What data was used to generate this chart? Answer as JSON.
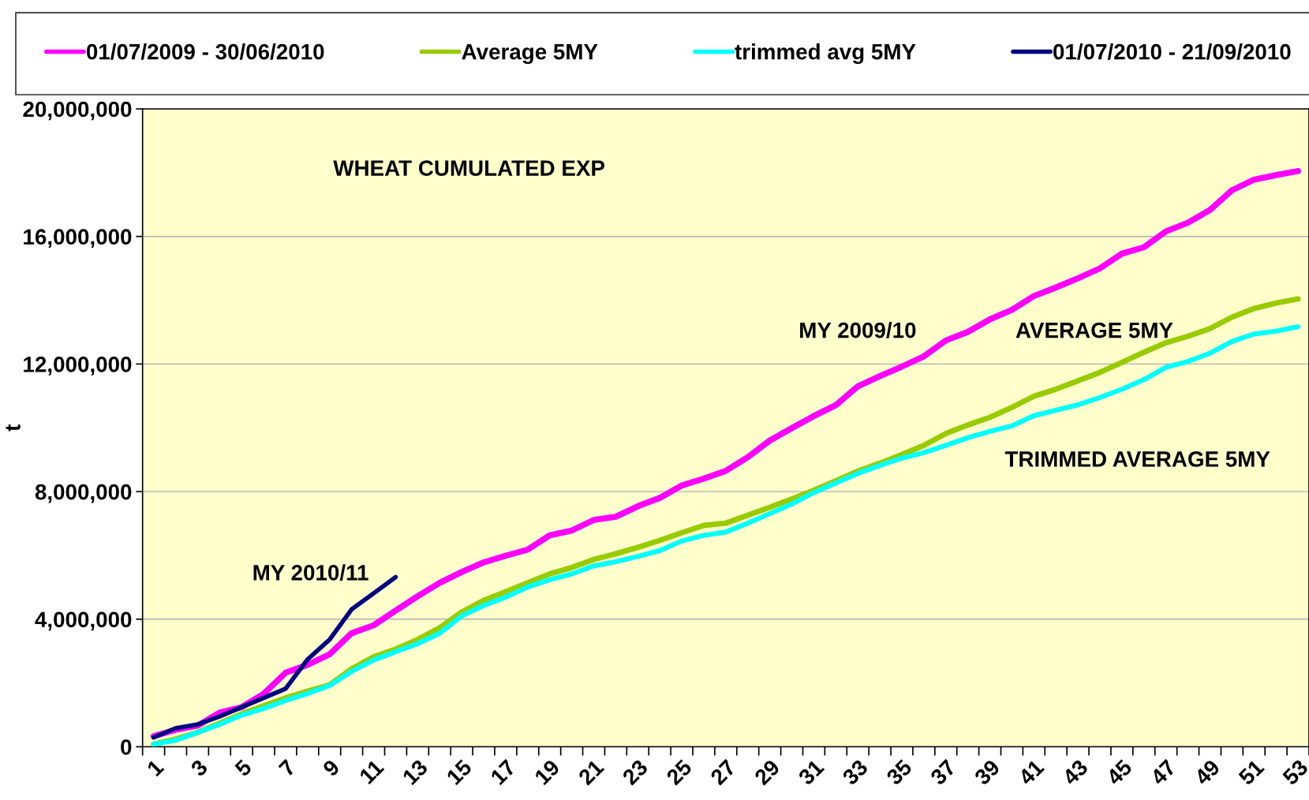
{
  "chart_data": {
    "type": "line",
    "title": "WHEAT CUMULATED EXP",
    "ylabel": "t",
    "categories": [
      "1",
      null,
      "3",
      null,
      "5",
      null,
      "7",
      null,
      "9",
      null,
      "11",
      null,
      "13",
      null,
      "15",
      null,
      "17",
      null,
      "19",
      null,
      "21",
      null,
      "23",
      null,
      "25",
      null,
      "27",
      null,
      "29",
      null,
      "31",
      null,
      "33",
      null,
      "35",
      null,
      "37",
      null,
      "39",
      null,
      "41",
      null,
      "43",
      null,
      "45",
      null,
      "47",
      null,
      "49",
      null,
      "51",
      null,
      "53"
    ],
    "series": [
      {
        "name": "01/07/2009 - 30/06/2010",
        "color": "#ff00ff",
        "values": [
          330000,
          530000,
          660000,
          1070000,
          1240000,
          1660000,
          2320000,
          2570000,
          2900000,
          3560000,
          3810000,
          4270000,
          4720000,
          5140000,
          5480000,
          5780000,
          5990000,
          6180000,
          6630000,
          6780000,
          7110000,
          7210000,
          7540000,
          7800000,
          8190000,
          8410000,
          8650000,
          9080000,
          9600000,
          9990000,
          10370000,
          10710000,
          11300000,
          11620000,
          11920000,
          12240000,
          12740000,
          13010000,
          13400000,
          13700000,
          14130000,
          14400000,
          14690000,
          15000000,
          15460000,
          15660000,
          16160000,
          16430000,
          16830000,
          17450000,
          17780000,
          17920000,
          18050000
        ]
      },
      {
        "name": "Average 5MY",
        "color": "#99cc00",
        "values": [
          80000,
          240000,
          450000,
          740000,
          1030000,
          1280000,
          1530000,
          1740000,
          1940000,
          2440000,
          2820000,
          3060000,
          3360000,
          3730000,
          4220000,
          4590000,
          4860000,
          5140000,
          5420000,
          5620000,
          5870000,
          6050000,
          6250000,
          6470000,
          6710000,
          6940000,
          7010000,
          7260000,
          7510000,
          7770000,
          8040000,
          8340000,
          8640000,
          8890000,
          9160000,
          9450000,
          9820000,
          10090000,
          10330000,
          10640000,
          10990000,
          11210000,
          11470000,
          11740000,
          12050000,
          12370000,
          12670000,
          12870000,
          13110000,
          13470000,
          13740000,
          13910000,
          14040000
        ]
      },
      {
        "name": "trimmed avg 5MY",
        "color": "#00ffff",
        "values": [
          80000,
          200000,
          450000,
          700000,
          990000,
          1200000,
          1450000,
          1670000,
          1920000,
          2360000,
          2720000,
          2980000,
          3230000,
          3560000,
          4100000,
          4430000,
          4690000,
          5010000,
          5240000,
          5420000,
          5670000,
          5800000,
          5970000,
          6150000,
          6450000,
          6630000,
          6730000,
          7010000,
          7310000,
          7610000,
          7970000,
          8270000,
          8570000,
          8820000,
          9050000,
          9220000,
          9450000,
          9690000,
          9890000,
          10060000,
          10380000,
          10550000,
          10720000,
          10950000,
          11210000,
          11510000,
          11900000,
          12080000,
          12340000,
          12710000,
          12940000,
          13030000,
          13170000
        ]
      },
      {
        "name": "01/07/2010 - 21/09/2010",
        "color": "#000080",
        "values": [
          290000,
          580000,
          700000,
          950000,
          1240000,
          1530000,
          1820000,
          2740000,
          3360000,
          4310000,
          4810000,
          5320000,
          null,
          null,
          null,
          null,
          null,
          null,
          null,
          null,
          null,
          null,
          null,
          null,
          null,
          null,
          null,
          null,
          null,
          null,
          null,
          null,
          null,
          null,
          null,
          null,
          null,
          null,
          null,
          null,
          null,
          null,
          null,
          null,
          null,
          null,
          null,
          null,
          null,
          null,
          null,
          null,
          null
        ]
      }
    ],
    "ylim": [
      0,
      20000000
    ],
    "yticks": [
      0,
      {
        "value": 4000000,
        "label": "4,000,000"
      },
      {
        "value": 8000000,
        "label": "8,000,000"
      },
      {
        "value": 12000000,
        "label": "12,000,000"
      },
      {
        "value": 16000000,
        "label": "16,000,000"
      },
      {
        "value": 20000000,
        "label": "20,000,000"
      }
    ],
    "grid": "y",
    "legend": "top",
    "marker": "none",
    "line_style": "solid",
    "annotations": [
      "MY 2010/11",
      "MY 2009/10",
      "AVERAGE 5MY",
      "TRIMMED AVERAGE 5MY"
    ]
  }
}
